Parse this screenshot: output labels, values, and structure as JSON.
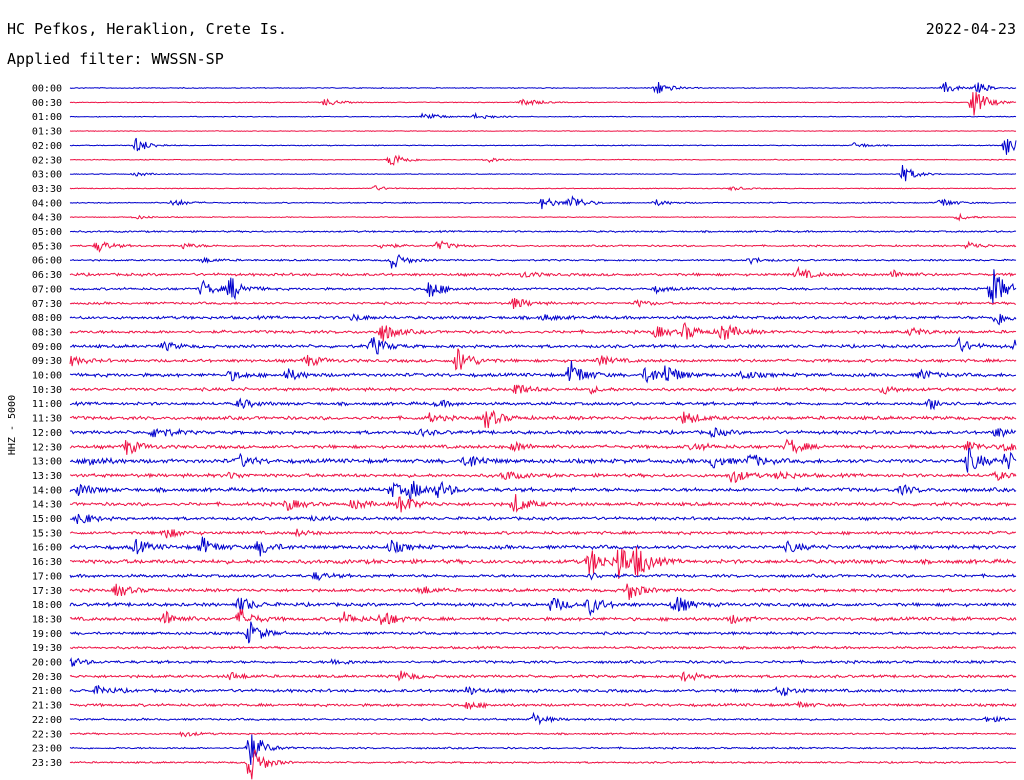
{
  "header": {
    "station": "HC Pefkos, Heraklion, Crete Is.",
    "date": "2022-04-23",
    "filter": "Applied filter: WWSSN-SP"
  },
  "chart_data": {
    "type": "line",
    "ylabel": "HHZ - 5000",
    "colors": {
      "a": "#0000cc",
      "b": "#ee1144"
    },
    "color_pattern": "alternating by row, starting with a",
    "rows": [
      {
        "label": "00:00",
        "noise": 0.5,
        "events": [
          [
            0.62,
            8
          ],
          [
            0.925,
            6
          ],
          [
            0.96,
            5
          ]
        ]
      },
      {
        "label": "00:30",
        "noise": 0.5,
        "events": [
          [
            0.27,
            4
          ],
          [
            0.48,
            5
          ],
          [
            0.955,
            16
          ]
        ]
      },
      {
        "label": "01:00",
        "noise": 0.5,
        "events": [
          [
            0.375,
            5
          ],
          [
            0.43,
            4
          ]
        ]
      },
      {
        "label": "01:30",
        "noise": 0.4,
        "events": []
      },
      {
        "label": "02:00",
        "noise": 0.5,
        "events": [
          [
            0.07,
            8
          ],
          [
            0.83,
            3
          ],
          [
            0.99,
            12
          ]
        ]
      },
      {
        "label": "02:30",
        "noise": 0.5,
        "events": [
          [
            0.34,
            8
          ],
          [
            0.44,
            3
          ]
        ]
      },
      {
        "label": "03:00",
        "noise": 0.5,
        "events": [
          [
            0.07,
            2
          ],
          [
            0.88,
            9
          ]
        ]
      },
      {
        "label": "03:30",
        "noise": 0.5,
        "events": [
          [
            0.32,
            3
          ],
          [
            0.7,
            2
          ]
        ]
      },
      {
        "label": "04:00",
        "noise": 0.7,
        "events": [
          [
            0.11,
            4
          ],
          [
            0.5,
            7
          ],
          [
            0.53,
            8
          ],
          [
            0.62,
            3
          ],
          [
            0.92,
            5
          ]
        ]
      },
      {
        "label": "04:30",
        "noise": 0.5,
        "events": [
          [
            0.07,
            2
          ],
          [
            0.94,
            3
          ]
        ]
      },
      {
        "label": "05:00",
        "noise": 1.0,
        "events": []
      },
      {
        "label": "05:30",
        "noise": 1.0,
        "events": [
          [
            0.03,
            6
          ],
          [
            0.12,
            3
          ],
          [
            0.33,
            3
          ],
          [
            0.39,
            5
          ],
          [
            0.95,
            4
          ]
        ]
      },
      {
        "label": "06:00",
        "noise": 1.0,
        "events": [
          [
            0.14,
            3
          ],
          [
            0.34,
            9
          ],
          [
            0.72,
            3
          ]
        ]
      },
      {
        "label": "06:30",
        "noise": 1.6,
        "events": [
          [
            0.48,
            3
          ],
          [
            0.77,
            6
          ],
          [
            0.87,
            4
          ]
        ]
      },
      {
        "label": "07:00",
        "noise": 1.4,
        "events": [
          [
            0.14,
            8
          ],
          [
            0.17,
            12
          ],
          [
            0.38,
            10
          ],
          [
            0.62,
            3
          ],
          [
            0.975,
            22
          ]
        ]
      },
      {
        "label": "07:30",
        "noise": 1.4,
        "events": [
          [
            0.47,
            6
          ],
          [
            0.6,
            3
          ]
        ]
      },
      {
        "label": "08:00",
        "noise": 1.8,
        "events": [
          [
            0.3,
            3
          ],
          [
            0.5,
            3
          ],
          [
            0.98,
            8
          ]
        ]
      },
      {
        "label": "08:30",
        "noise": 1.8,
        "events": [
          [
            0.33,
            10
          ],
          [
            0.62,
            6
          ],
          [
            0.65,
            8
          ],
          [
            0.69,
            10
          ],
          [
            0.89,
            4
          ]
        ]
      },
      {
        "label": "09:00",
        "noise": 1.8,
        "events": [
          [
            0.1,
            4
          ],
          [
            0.32,
            10
          ],
          [
            0.94,
            7
          ],
          [
            1.0,
            7
          ]
        ]
      },
      {
        "label": "09:30",
        "noise": 1.8,
        "events": [
          [
            0.0,
            5
          ],
          [
            0.25,
            6
          ],
          [
            0.41,
            14
          ],
          [
            0.56,
            5
          ]
        ]
      },
      {
        "label": "10:00",
        "noise": 2.0,
        "events": [
          [
            0.17,
            5
          ],
          [
            0.23,
            6
          ],
          [
            0.53,
            14
          ],
          [
            0.61,
            9
          ],
          [
            0.63,
            10
          ],
          [
            0.71,
            5
          ],
          [
            0.9,
            5
          ]
        ]
      },
      {
        "label": "10:30",
        "noise": 1.8,
        "events": [
          [
            0.47,
            7
          ],
          [
            0.55,
            3
          ],
          [
            0.86,
            4
          ]
        ]
      },
      {
        "label": "11:00",
        "noise": 1.8,
        "events": [
          [
            0.18,
            5
          ],
          [
            0.39,
            3
          ],
          [
            0.91,
            6
          ]
        ]
      },
      {
        "label": "11:30",
        "noise": 2.0,
        "events": [
          [
            0.38,
            4
          ],
          [
            0.44,
            11
          ],
          [
            0.65,
            7
          ]
        ]
      },
      {
        "label": "12:00",
        "noise": 2.0,
        "events": [
          [
            0.09,
            8
          ],
          [
            0.37,
            3
          ],
          [
            0.68,
            4
          ],
          [
            0.98,
            5
          ]
        ]
      },
      {
        "label": "12:30",
        "noise": 2.0,
        "events": [
          [
            0.06,
            8
          ],
          [
            0.47,
            5
          ],
          [
            0.66,
            4
          ],
          [
            0.76,
            9
          ],
          [
            0.95,
            6
          ],
          [
            0.99,
            5
          ]
        ]
      },
      {
        "label": "13:00",
        "noise": 2.4,
        "events": [
          [
            0.02,
            6
          ],
          [
            0.18,
            6
          ],
          [
            0.42,
            8
          ],
          [
            0.68,
            6
          ],
          [
            0.72,
            7
          ],
          [
            0.95,
            12
          ],
          [
            0.99,
            9
          ]
        ]
      },
      {
        "label": "13:30",
        "noise": 2.0,
        "events": [
          [
            0.17,
            3
          ],
          [
            0.46,
            5
          ],
          [
            0.7,
            8
          ],
          [
            0.75,
            5
          ],
          [
            0.98,
            4
          ]
        ]
      },
      {
        "label": "14:00",
        "noise": 2.2,
        "events": [
          [
            0.01,
            6
          ],
          [
            0.34,
            7
          ],
          [
            0.36,
            9
          ],
          [
            0.39,
            8
          ],
          [
            0.88,
            4
          ]
        ]
      },
      {
        "label": "14:30",
        "noise": 2.0,
        "events": [
          [
            0.23,
            6
          ],
          [
            0.3,
            5
          ],
          [
            0.35,
            10
          ],
          [
            0.47,
            10
          ]
        ]
      },
      {
        "label": "15:00",
        "noise": 1.8,
        "events": [
          [
            0.01,
            7
          ],
          [
            0.26,
            3
          ]
        ]
      },
      {
        "label": "15:30",
        "noise": 1.8,
        "events": [
          [
            0.1,
            6
          ],
          [
            0.24,
            3
          ]
        ]
      },
      {
        "label": "16:00",
        "noise": 2.2,
        "events": [
          [
            0.07,
            7
          ],
          [
            0.14,
            9
          ],
          [
            0.2,
            8
          ],
          [
            0.34,
            6
          ],
          [
            0.76,
            5
          ]
        ]
      },
      {
        "label": "16:30",
        "noise": 2.4,
        "events": [
          [
            0.55,
            14
          ],
          [
            0.58,
            20
          ],
          [
            0.6,
            13
          ]
        ]
      },
      {
        "label": "17:00",
        "noise": 1.8,
        "events": [
          [
            0.26,
            4
          ],
          [
            0.55,
            3
          ]
        ]
      },
      {
        "label": "17:30",
        "noise": 1.8,
        "events": [
          [
            0.05,
            7
          ],
          [
            0.37,
            5
          ],
          [
            0.59,
            10
          ]
        ]
      },
      {
        "label": "18:00",
        "noise": 2.0,
        "events": [
          [
            0.18,
            8
          ],
          [
            0.51,
            8
          ],
          [
            0.55,
            9
          ],
          [
            0.64,
            10
          ]
        ]
      },
      {
        "label": "18:30",
        "noise": 2.0,
        "events": [
          [
            0.1,
            8
          ],
          [
            0.18,
            10
          ],
          [
            0.29,
            6
          ],
          [
            0.33,
            9
          ],
          [
            0.7,
            4
          ]
        ]
      },
      {
        "label": "19:00",
        "noise": 1.6,
        "events": [
          [
            0.19,
            12
          ]
        ]
      },
      {
        "label": "19:30",
        "noise": 1.4,
        "events": []
      },
      {
        "label": "20:00",
        "noise": 1.6,
        "events": [
          [
            0.0,
            5
          ],
          [
            0.28,
            3
          ]
        ]
      },
      {
        "label": "20:30",
        "noise": 1.6,
        "events": [
          [
            0.17,
            4
          ],
          [
            0.35,
            5
          ],
          [
            0.65,
            5
          ]
        ]
      },
      {
        "label": "21:00",
        "noise": 1.8,
        "events": [
          [
            0.03,
            5
          ],
          [
            0.42,
            4
          ],
          [
            0.75,
            6
          ]
        ]
      },
      {
        "label": "21:30",
        "noise": 1.6,
        "events": [
          [
            0.42,
            4
          ],
          [
            0.77,
            3
          ]
        ]
      },
      {
        "label": "22:00",
        "noise": 1.2,
        "events": [
          [
            0.49,
            6
          ],
          [
            0.97,
            3
          ]
        ]
      },
      {
        "label": "22:30",
        "noise": 1.0,
        "events": [
          [
            0.12,
            3
          ]
        ]
      },
      {
        "label": "23:00",
        "noise": 1.0,
        "events": [
          [
            0.19,
            18
          ]
        ]
      },
      {
        "label": "23:30",
        "noise": 1.0,
        "events": [
          [
            0.19,
            20
          ]
        ]
      }
    ]
  }
}
